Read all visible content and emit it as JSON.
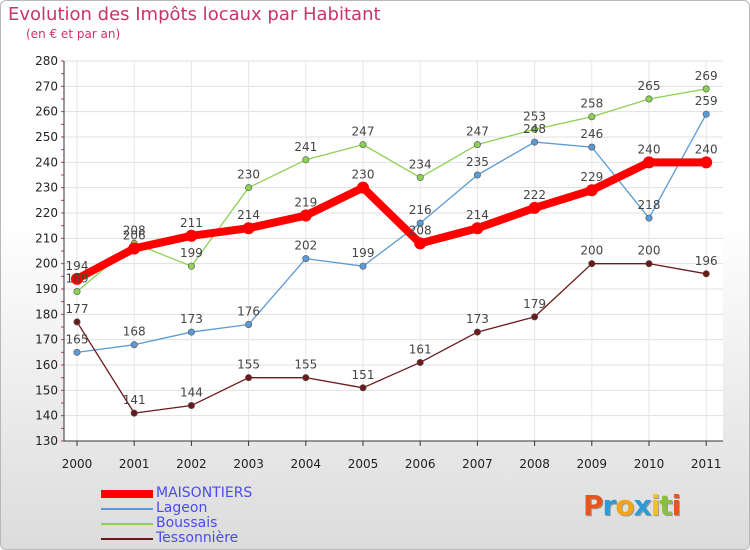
{
  "title": "Evolution des Impôts locaux par Habitant",
  "subtitle": "(en € et par an)",
  "logo": {
    "text": "Proxiti",
    "letters": [
      "P",
      "r",
      "o",
      "x",
      "i",
      "t",
      "i"
    ],
    "colors": [
      "#e8561e",
      "#2f9bd6",
      "#f2a51b",
      "#2f9bd6",
      "#f2c51b",
      "#8cbf3f",
      "#e8561e"
    ]
  },
  "chart_data": {
    "type": "line",
    "title": "Evolution des Impôts locaux par Habitant",
    "subtitle": "(en € et par an)",
    "xlabel": "",
    "ylabel": "",
    "ylim": [
      130,
      280
    ],
    "yticks": [
      130,
      140,
      150,
      160,
      170,
      180,
      190,
      200,
      210,
      220,
      230,
      240,
      250,
      260,
      270,
      280
    ],
    "grid": true,
    "categories": [
      "2000",
      "2001",
      "2002",
      "2003",
      "2004",
      "2005",
      "2006",
      "2007",
      "2008",
      "2009",
      "2010",
      "2011"
    ],
    "legend_position": "bottom-left",
    "series": [
      {
        "name": "MAISONTIERS",
        "color": "#ff0000",
        "values": [
          194,
          206,
          211,
          214,
          219,
          230,
          208,
          214,
          222,
          229,
          240,
          240
        ]
      },
      {
        "name": "Lageon",
        "color": "#5b9bd5",
        "values": [
          165,
          168,
          173,
          176,
          202,
          199,
          216,
          235,
          248,
          246,
          218,
          259
        ]
      },
      {
        "name": "Boussais",
        "color": "#8cd152",
        "values": [
          189,
          208,
          199,
          230,
          241,
          247,
          234,
          247,
          253,
          258,
          265,
          269
        ]
      },
      {
        "name": "Tessonnière",
        "color": "#6b1a1a",
        "values": [
          177,
          141,
          144,
          155,
          155,
          151,
          161,
          173,
          179,
          200,
          200,
          196
        ]
      }
    ]
  }
}
